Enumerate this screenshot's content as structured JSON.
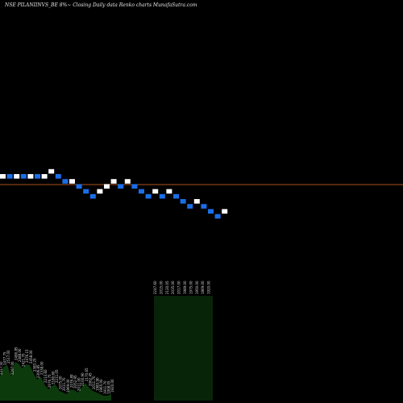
{
  "header": {
    "title": "NSE PILANIINVS_BE 8%~ Closing Daily data Renko charts MunafaSutra.com"
  },
  "colors": {
    "up": "#ffffff",
    "down": "#1a6fe8",
    "reference_line": "#b0521e",
    "volume_fill": "#0c3a0c",
    "volume_fill_highlight": "#082408",
    "label": "#d8d8d8"
  },
  "chart_data": {
    "type": "renko",
    "title": "NSE PILANIINVS_BE 8%~ Closing Daily data Renko charts MunafaSutra.com",
    "box_size_label": "8%",
    "grid": false,
    "bricks": [
      {
        "dir": "up",
        "level": 0
      },
      {
        "dir": "down",
        "level": 0
      },
      {
        "dir": "up",
        "level": 0
      },
      {
        "dir": "down",
        "level": 0
      },
      {
        "dir": "up",
        "level": 0
      },
      {
        "dir": "down",
        "level": 0
      },
      {
        "dir": "up",
        "level": 0
      },
      {
        "dir": "up",
        "level": 1
      },
      {
        "dir": "down",
        "level": 0
      },
      {
        "dir": "down",
        "level": -1
      },
      {
        "dir": "up",
        "level": -1
      },
      {
        "dir": "down",
        "level": -2
      },
      {
        "dir": "down",
        "level": -3
      },
      {
        "dir": "down",
        "level": -4
      },
      {
        "dir": "up",
        "level": -3
      },
      {
        "dir": "up",
        "level": -2
      },
      {
        "dir": "up",
        "level": -1
      },
      {
        "dir": "down",
        "level": -2
      },
      {
        "dir": "up",
        "level": -1
      },
      {
        "dir": "down",
        "level": -2
      },
      {
        "dir": "down",
        "level": -3
      },
      {
        "dir": "down",
        "level": -4
      },
      {
        "dir": "up",
        "level": -3
      },
      {
        "dir": "down",
        "level": -4
      },
      {
        "dir": "up",
        "level": -3
      },
      {
        "dir": "down",
        "level": -4
      },
      {
        "dir": "down",
        "level": -5
      },
      {
        "dir": "down",
        "level": -6
      },
      {
        "dir": "up",
        "level": -5
      },
      {
        "dir": "down",
        "level": -6
      },
      {
        "dir": "down",
        "level": -7
      },
      {
        "dir": "down",
        "level": -8
      },
      {
        "dir": "up",
        "level": -7
      }
    ],
    "volume_labels": [
      "2317.50",
      "2477.75",
      "2517.00",
      "2297.00",
      "2490.85",
      "2488.00",
      "2421.70",
      "2476.15",
      "2458.00",
      "2383.25",
      "2306.85",
      "2338.00",
      "2213.60",
      "2076.75",
      "2180.60",
      "2211.05",
      "2075.00",
      "2011.70",
      "1969.00",
      "2076.89",
      "2052.95",
      "2011.00",
      "2100.90",
      "2170.65",
      "2062.45",
      "2011.70",
      "1983.90",
      "1965.00",
      "1911.70",
      "1908.05",
      "1920.00",
      "2247.60",
      "2015.00",
      "2120.05",
      "2035.00",
      "2017.00",
      "1989.00",
      "1975.00",
      "1950.00",
      "1869.00",
      "1920.00"
    ],
    "volume_values": [
      30,
      42,
      44,
      30,
      48,
      46,
      40,
      45,
      44,
      34,
      26,
      30,
      20,
      14,
      18,
      20,
      12,
      10,
      8,
      14,
      13,
      10,
      16,
      22,
      16,
      12,
      10,
      8,
      6,
      6,
      8,
      130,
      130,
      130,
      130,
      130,
      130,
      130,
      130,
      130,
      130
    ]
  }
}
